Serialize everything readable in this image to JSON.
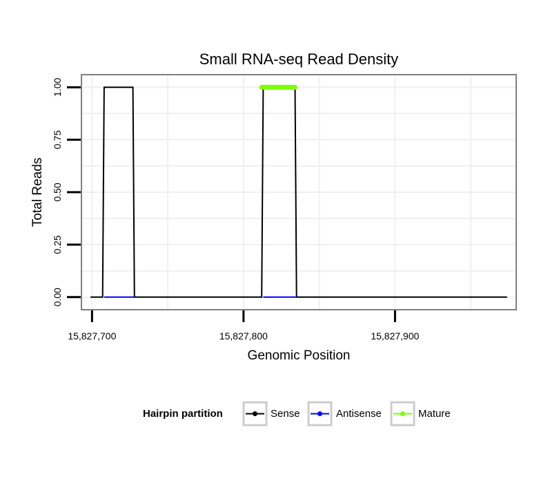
{
  "chart_data": {
    "type": "line",
    "title": "Small RNA-seq Read Density",
    "xlabel": "Genomic Position",
    "ylabel": "Total Reads",
    "xlim": [
      15827693,
      15827980
    ],
    "ylim": [
      -0.06,
      1.06
    ],
    "x_ticks": [
      {
        "value": 15827700,
        "label": "15,827,700"
      },
      {
        "value": 15827800,
        "label": "15,827,800"
      },
      {
        "value": 15827900,
        "label": "15,827,900"
      }
    ],
    "y_ticks": [
      {
        "value": 0.0,
        "label": "0.00"
      },
      {
        "value": 0.25,
        "label": "0.25"
      },
      {
        "value": 0.5,
        "label": "0.50"
      },
      {
        "value": 0.75,
        "label": "0.75"
      },
      {
        "value": 1.0,
        "label": "1.00"
      }
    ],
    "grid": true,
    "series": [
      {
        "name": "Sense",
        "color": "#000000",
        "width": 2,
        "x": [
          15827699,
          15827707,
          15827708,
          15827727,
          15827728,
          15827812,
          15827813,
          15827834,
          15827835,
          15827974
        ],
        "y": [
          0,
          0,
          1,
          1,
          0,
          0,
          1,
          1,
          0,
          0
        ]
      },
      {
        "name": "Antisense",
        "color": "#0000ff",
        "width": 2,
        "x": [
          15827708,
          15827728,
          null,
          15827813,
          15827835
        ],
        "y": [
          0,
          0,
          null,
          0,
          0
        ]
      },
      {
        "name": "Mature",
        "color": "#7fff00",
        "width": 7,
        "x": [
          15827812,
          15827834
        ],
        "y": [
          1.0,
          1.0
        ]
      }
    ],
    "legend": {
      "title": "Hairpin partition",
      "position": "bottom",
      "items": [
        {
          "name": "Sense",
          "color": "#000000"
        },
        {
          "name": "Antisense",
          "color": "#0000ff"
        },
        {
          "name": "Mature",
          "color": "#7fff00"
        }
      ]
    }
  }
}
